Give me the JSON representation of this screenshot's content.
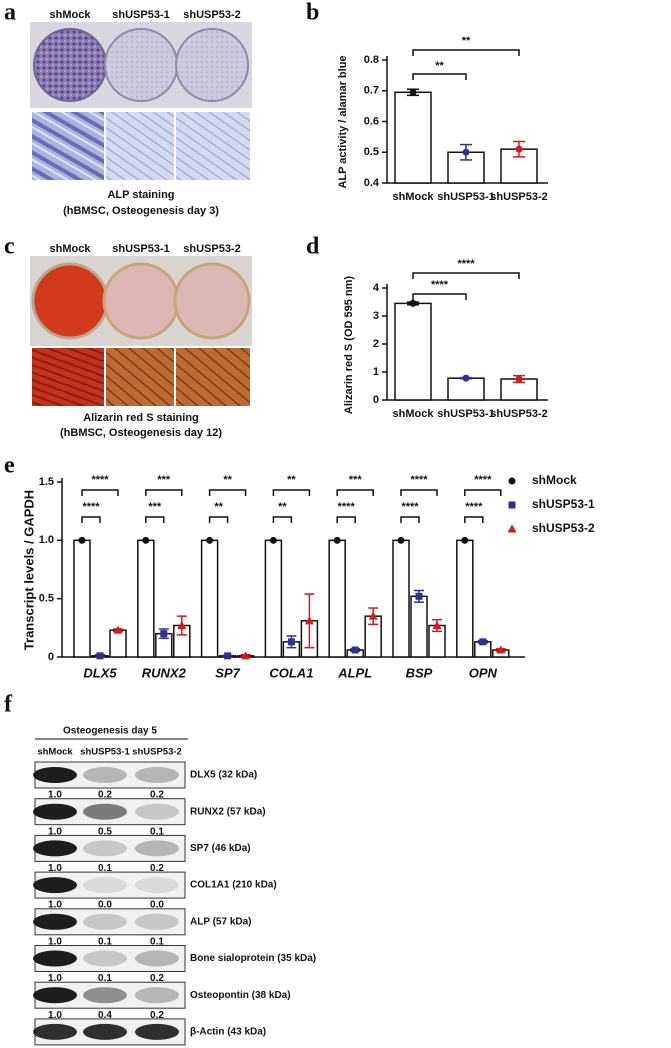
{
  "panel_labels": [
    "a",
    "b",
    "c",
    "d",
    "e",
    "f"
  ],
  "staining_panels": [
    {
      "lanes": [
        "shMock",
        "shUSP53-1",
        "shUSP53-2"
      ],
      "caption": [
        "ALP staining",
        "(hBMSC, Osteogenesis day 3)"
      ]
    },
    {
      "lanes": [
        "shMock",
        "shUSP53-1",
        "shUSP53-2"
      ],
      "caption": [
        "Alizarin red S staining",
        "(hBMSC, Osteogenesis day 12)"
      ]
    }
  ],
  "chart_data": [
    {
      "type": "bar",
      "y_label": "ALP activity / alamar blue",
      "categories": [
        "shMock",
        "shUSP53-1",
        "shUSP53-2"
      ],
      "values": [
        0.695,
        0.5,
        0.51
      ],
      "errors": [
        0.01,
        0.025,
        0.025
      ],
      "colors": [
        "#111111",
        "#2e3192",
        "#d7191c"
      ],
      "ylim": [
        0.4,
        0.8
      ],
      "yticks": [
        0.4,
        0.5,
        0.6,
        0.7,
        0.8
      ],
      "annotations": [
        "**",
        "**"
      ]
    },
    {
      "type": "bar",
      "y_label": "Alizarin red S (OD 595 nm)",
      "categories": [
        "shMock",
        "shUSP53-1",
        "shUSP53-2"
      ],
      "values": [
        3.45,
        0.78,
        0.75
      ],
      "errors": [
        0.05,
        0.02,
        0.12
      ],
      "colors": [
        "#111111",
        "#2e3192",
        "#d7191c"
      ],
      "ylim": [
        0,
        4
      ],
      "yticks": [
        0,
        1,
        2,
        3,
        4
      ],
      "annotations": [
        "****",
        "****"
      ]
    },
    {
      "type": "grouped_bar",
      "y_label": "Transcript levels / GAPDH",
      "categories": [
        "DLX5",
        "RUNX2",
        "SP7",
        "COLA1",
        "ALPL",
        "BSP",
        "OPN"
      ],
      "series": [
        {
          "name": "shMock",
          "color": "#111111",
          "marker": "circle",
          "values": [
            1,
            1,
            1,
            1,
            1,
            1,
            1
          ],
          "errors": [
            0,
            0,
            0,
            0,
            0,
            0,
            0
          ]
        },
        {
          "name": "shUSP53-1",
          "color": "#2e3192",
          "marker": "square",
          "values": [
            0.01,
            0.2,
            0.01,
            0.13,
            0.06,
            0.52,
            0.13
          ],
          "errors": [
            0.01,
            0.04,
            0.005,
            0.05,
            0.01,
            0.05,
            0.01
          ]
        },
        {
          "name": "shUSP53-2",
          "color": "#d7191c",
          "marker": "triangle",
          "values": [
            0.23,
            0.27,
            0.01,
            0.31,
            0.35,
            0.27,
            0.06
          ],
          "errors": [
            0.01,
            0.08,
            0.01,
            0.23,
            0.07,
            0.05,
            0.01
          ]
        }
      ],
      "ylim": [
        0,
        1.5
      ],
      "yticks": [
        0,
        0.5,
        {
          "value": 1,
          "label": "1.0"
        },
        1.5
      ],
      "annotations": [
        [
          "****",
          "****"
        ],
        [
          "***",
          "***"
        ],
        [
          "**",
          "**"
        ],
        [
          "**",
          "**"
        ],
        [
          "****",
          "***"
        ],
        [
          "****",
          "****"
        ],
        [
          "****",
          "****"
        ]
      ]
    }
  ],
  "western_blot": {
    "title": "Osteogenesis day 5",
    "lanes": [
      "shMock",
      "shUSP53-1",
      "shUSP53-2"
    ],
    "rows": [
      {
        "label": "DLX5 (32 kDa)",
        "values": [
          "1.0",
          "0.2",
          "0.2"
        ]
      },
      {
        "label": "RUNX2 (57 kDa)",
        "values": [
          "1.0",
          "0.5",
          "0.1"
        ]
      },
      {
        "label": "SP7 (46 kDa)",
        "values": [
          "1.0",
          "0.1",
          "0.2"
        ]
      },
      {
        "label": "COL1A1 (210 kDa)",
        "values": [
          "1.0",
          "0.0",
          "0.0"
        ]
      },
      {
        "label": "ALP (57 kDa)",
        "values": [
          "1.0",
          "0.1",
          "0.1"
        ]
      },
      {
        "label": "Bone sialoprotein (35 kDa)",
        "values": [
          "1.0",
          "0.1",
          "0.2"
        ]
      },
      {
        "label": "Osteopontin (38 kDa)",
        "values": [
          "1.0",
          "0.4",
          "0.2"
        ]
      },
      {
        "label": "β-Actin (43 kDa)"
      }
    ]
  }
}
